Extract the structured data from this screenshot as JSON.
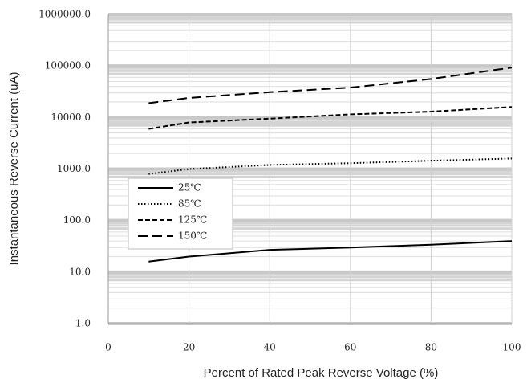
{
  "chart_data": {
    "type": "line",
    "x_label": "Percent of Rated Peak Reverse Voltage (%)",
    "y_label": "Instantaneous Reverse Current (uA)",
    "x": [
      10,
      20,
      40,
      60,
      80,
      100
    ],
    "series": [
      {
        "name": "25℃",
        "color": "#000000",
        "style": "solid",
        "values": [
          16,
          20,
          27,
          30,
          34,
          40
        ]
      },
      {
        "name": "85℃",
        "color": "#000000",
        "style": "dotted",
        "values": [
          800,
          1000,
          1200,
          1300,
          1450,
          1600
        ]
      },
      {
        "name": "125℃",
        "color": "#000000",
        "style": "dashed",
        "values": [
          6000,
          8000,
          9500,
          11500,
          13000,
          16000
        ]
      },
      {
        "name": "150℃",
        "color": "#000000",
        "style": "longdash",
        "values": [
          19000,
          24000,
          31000,
          38000,
          56000,
          93000
        ]
      }
    ],
    "xlim": [
      0,
      100
    ],
    "xticks": [
      0,
      20,
      40,
      60,
      80,
      100
    ],
    "ylim": [
      1,
      1000000
    ],
    "log_y": true,
    "yticks": [
      {
        "value": 1,
        "label": "1.0"
      },
      {
        "value": 10,
        "label": "10.0"
      },
      {
        "value": 100,
        "label": "100.0"
      },
      {
        "value": 1000,
        "label": "1000.0"
      },
      {
        "value": 10000,
        "label": "10000.0"
      },
      {
        "value": 100000,
        "label": "100000.0"
      },
      {
        "value": 1000000,
        "label": "1000000.0"
      }
    ],
    "grid": true,
    "minor_grid": true,
    "legend": "center-left"
  }
}
